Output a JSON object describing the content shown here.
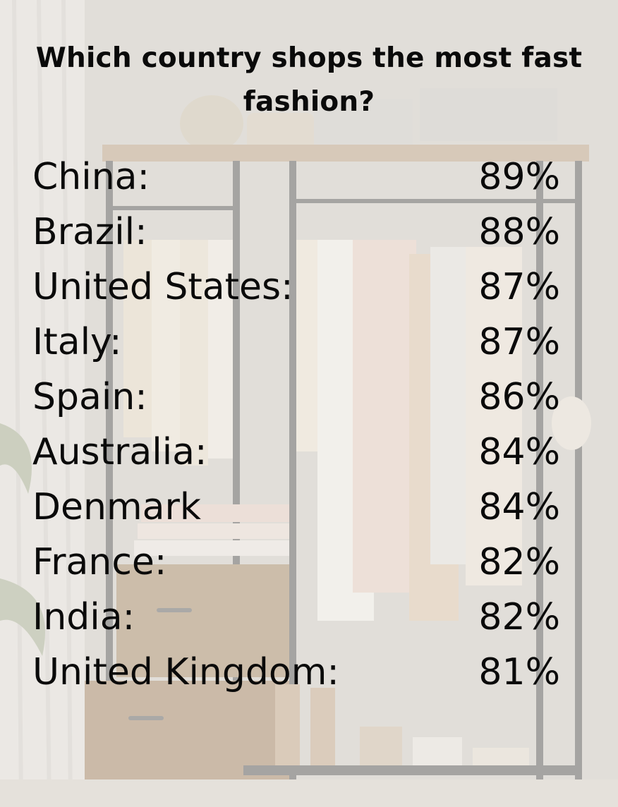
{
  "title": "Which country shops the most fast fashion?",
  "rows": [
    {
      "country": "China:",
      "percent": "89%"
    },
    {
      "country": "Brazil:",
      "percent": "88%"
    },
    {
      "country": "United States:",
      "percent": "87%"
    },
    {
      "country": "Italy:",
      "percent": "87%"
    },
    {
      "country": "Spain:",
      "percent": "86%"
    },
    {
      "country": "Australia:",
      "percent": "84%"
    },
    {
      "country": "Denmark",
      "percent": "84%"
    },
    {
      "country": "France:",
      "percent": "82%"
    },
    {
      "country": "India:",
      "percent": "82%"
    },
    {
      "country": "United Kingdom:",
      "percent": "81%"
    }
  ],
  "colors": {
    "text": "#0a0a0a",
    "overlay": "#f0eeeb",
    "wood": "#a88a6a",
    "frame": "#3a3a3a"
  },
  "background": {
    "icon": "clothing-rack-photo"
  }
}
